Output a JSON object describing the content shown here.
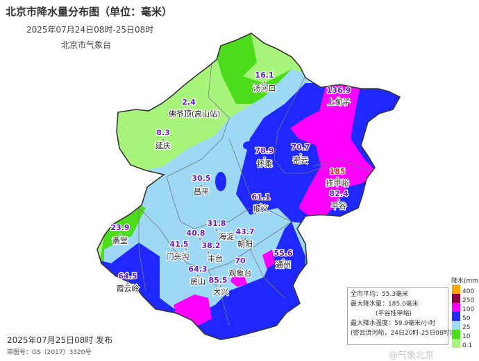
{
  "header": {
    "title": "北京市降水量分布图（单位：毫米）",
    "subtitle": "2025年07月24日08时-25日08时",
    "agency": "北京市气象台"
  },
  "stations": [
    {
      "value": "16.1",
      "name": "汤河口"
    },
    {
      "value": "2.4",
      "name": "佛爷顶(高山站)"
    },
    {
      "value": "8.3",
      "name": "延庆"
    },
    {
      "value": "78.9",
      "name": "怀柔"
    },
    {
      "value": "70.7",
      "name": "密云"
    },
    {
      "value": "136.9",
      "name": "上甸子"
    },
    {
      "value": "185",
      "name": "挂甲峪",
      "max": true
    },
    {
      "value": "82.4",
      "name": "平谷"
    },
    {
      "value": "30.5",
      "name": "昌平"
    },
    {
      "value": "61.1",
      "name": "顺义"
    },
    {
      "value": "23.9",
      "name": "斋堂"
    },
    {
      "value": "31.8",
      "name": "海淀"
    },
    {
      "value": "40.8",
      "name": ""
    },
    {
      "value": "41.5",
      "name": "门头沟"
    },
    {
      "value": "38.2",
      "name": "丰台"
    },
    {
      "value": "43.7",
      "name": "朝阳"
    },
    {
      "value": "55.6",
      "name": "通州"
    },
    {
      "value": "70",
      "name": "观象台"
    },
    {
      "value": "64.3",
      "name": "房山"
    },
    {
      "value": "85.5",
      "name": "大兴"
    },
    {
      "value": "64.5",
      "name": "霞云岭"
    }
  ],
  "legend": {
    "title": "降水(mm)",
    "levels": [
      {
        "label": "400",
        "color": "#ffa500"
      },
      {
        "label": "250",
        "color": "#8b0040"
      },
      {
        "label": "100",
        "color": "#ff00ff"
      },
      {
        "label": "50",
        "color": "#1e28ff"
      },
      {
        "label": "25",
        "color": "#9dd8f5"
      },
      {
        "label": "10",
        "color": "#4cdc1c"
      },
      {
        "label": "0.1",
        "color": "#a6f57a"
      }
    ]
  },
  "info": {
    "avg": "全市平均：55.3毫米",
    "max": "最大降水量：185.0毫米",
    "max_site": "(平谷挂甲峪)",
    "intensity": "最大降水强度：59.9毫米/小时",
    "intensity_site": "(密云流河峪，24日20时-25日08时)"
  },
  "footer": {
    "issued": "2025年07月25日08时 发布",
    "approval": "审图号：GS（2017）3320号"
  },
  "watermark": "@气象北京"
}
